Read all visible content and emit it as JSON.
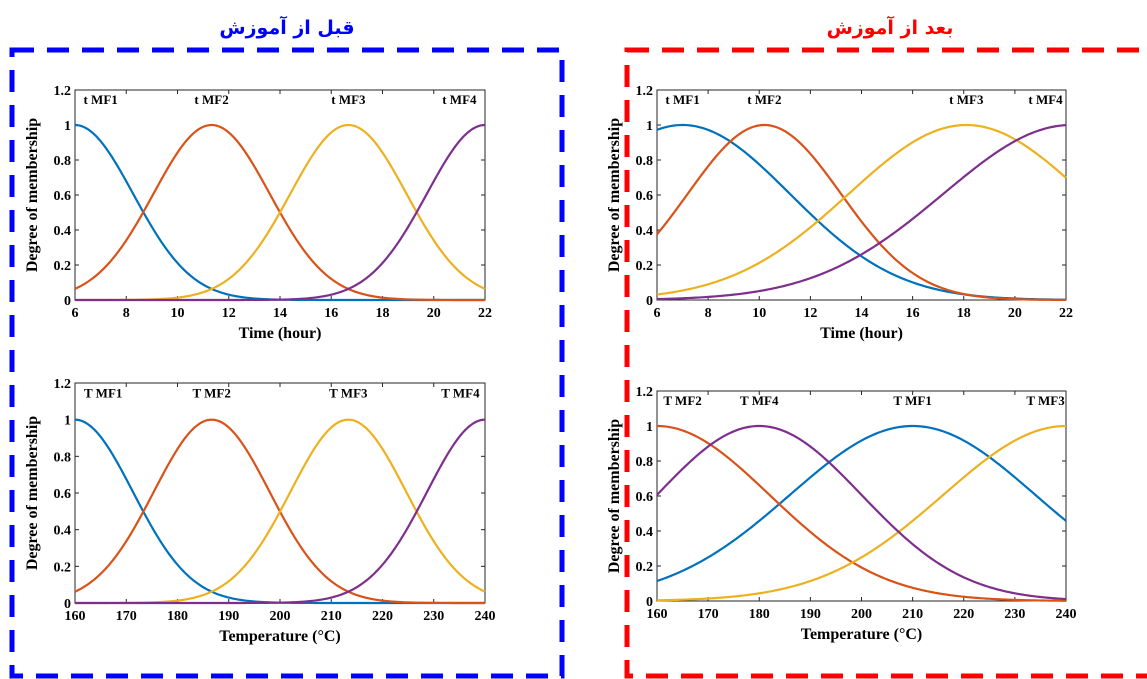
{
  "headers": {
    "before": {
      "text": "قبل از آموزش",
      "color": "#0000ff"
    },
    "after": {
      "text": "بعد از آموزش",
      "color": "#ff0000"
    }
  },
  "series_colors": [
    "#0072bd",
    "#d95319",
    "#edb120",
    "#7e2f8e"
  ],
  "chart_data": [
    {
      "id": "before-time",
      "type": "line",
      "xlabel": "Time (hour)",
      "ylabel": "Degree of membership",
      "xlim": [
        6,
        22
      ],
      "ylim": [
        0,
        1.2
      ],
      "xticks": [
        6,
        8,
        10,
        12,
        14,
        16,
        18,
        20,
        22
      ],
      "yticks": [
        0,
        0.2,
        0.4,
        0.6,
        0.8,
        1,
        1.2
      ],
      "ytick_labels": [
        "0",
        "0.2",
        "0.4",
        "0.6",
        "0.8",
        "1",
        "1.2"
      ],
      "series": [
        {
          "name": "t MF1",
          "center": 6,
          "sigma": 2.27,
          "label_x": 7.0
        },
        {
          "name": "t MF2",
          "center": 11.33,
          "sigma": 2.27,
          "label_x": 11.33
        },
        {
          "name": "t MF3",
          "center": 16.67,
          "sigma": 2.27,
          "label_x": 16.67
        },
        {
          "name": "t MF4",
          "center": 22,
          "sigma": 2.27,
          "label_x": 21.0
        }
      ]
    },
    {
      "id": "after-time",
      "type": "line",
      "xlabel": "Time (hour)",
      "ylabel": "Degree of membership",
      "xlim": [
        6,
        22
      ],
      "ylim": [
        0,
        1.2
      ],
      "xticks": [
        6,
        8,
        10,
        12,
        14,
        16,
        18,
        20,
        22
      ],
      "yticks": [
        0,
        0.2,
        0.4,
        0.6,
        0.8,
        1,
        1.2
      ],
      "ytick_labels": [
        "0",
        "0.2",
        "0.4",
        "0.6",
        "0.8",
        "1",
        "1.2"
      ],
      "series": [
        {
          "name": "t MF1",
          "center": 7.0,
          "sigma": 4.2,
          "label_x": 7.0
        },
        {
          "name": "t MF2",
          "center": 10.2,
          "sigma": 3.0,
          "label_x": 10.2
        },
        {
          "name": "t MF3",
          "center": 18.1,
          "sigma": 4.6,
          "label_x": 18.1
        },
        {
          "name": "t MF4",
          "center": 22.2,
          "sigma": 5.0,
          "label_x": 21.2
        }
      ]
    },
    {
      "id": "before-temperature",
      "type": "line",
      "xlabel": "Temperature (°C)",
      "ylabel": "Degree of membership",
      "xlim": [
        160,
        240
      ],
      "ylim": [
        0,
        1.2
      ],
      "xticks": [
        160,
        170,
        180,
        190,
        200,
        210,
        220,
        230,
        240
      ],
      "yticks": [
        0,
        0.2,
        0.4,
        0.6,
        0.8,
        1,
        1.2
      ],
      "ytick_labels": [
        "0",
        "0.2",
        "0.4",
        "0.6",
        "0.8",
        "1",
        "1.2"
      ],
      "series": [
        {
          "name": "T MF1",
          "center": 160,
          "sigma": 11.3,
          "label_x": 165.5
        },
        {
          "name": "T MF2",
          "center": 186.67,
          "sigma": 11.3,
          "label_x": 186.67
        },
        {
          "name": "T MF3",
          "center": 213.33,
          "sigma": 11.3,
          "label_x": 213.33
        },
        {
          "name": "T MF4",
          "center": 240,
          "sigma": 11.3,
          "label_x": 235.2
        }
      ]
    },
    {
      "id": "after-temperature",
      "type": "line",
      "xlabel": "Temperature (°C)",
      "ylabel": "Degree of membership",
      "xlim": [
        160,
        240
      ],
      "ylim": [
        0,
        1.2
      ],
      "xticks": [
        160,
        170,
        180,
        190,
        200,
        210,
        220,
        230,
        240
      ],
      "yticks": [
        0,
        0.2,
        0.4,
        0.6,
        0.8,
        1,
        1.2
      ],
      "ytick_labels": [
        "0",
        "0.2",
        "0.4",
        "0.6",
        "0.8",
        "1",
        "1.2"
      ],
      "series": [
        {
          "name": "T MF1",
          "center": 210,
          "sigma": 24,
          "color_index": 0,
          "label_x": 210
        },
        {
          "name": "T MF2",
          "center": 160,
          "sigma": 22,
          "color_index": 1,
          "label_x": 165
        },
        {
          "name": "T MF3",
          "center": 240,
          "sigma": 24,
          "color_index": 2,
          "label_x": 236
        },
        {
          "name": "T MF4",
          "center": 180,
          "sigma": 20,
          "color_index": 3,
          "label_x": 180
        }
      ]
    }
  ]
}
